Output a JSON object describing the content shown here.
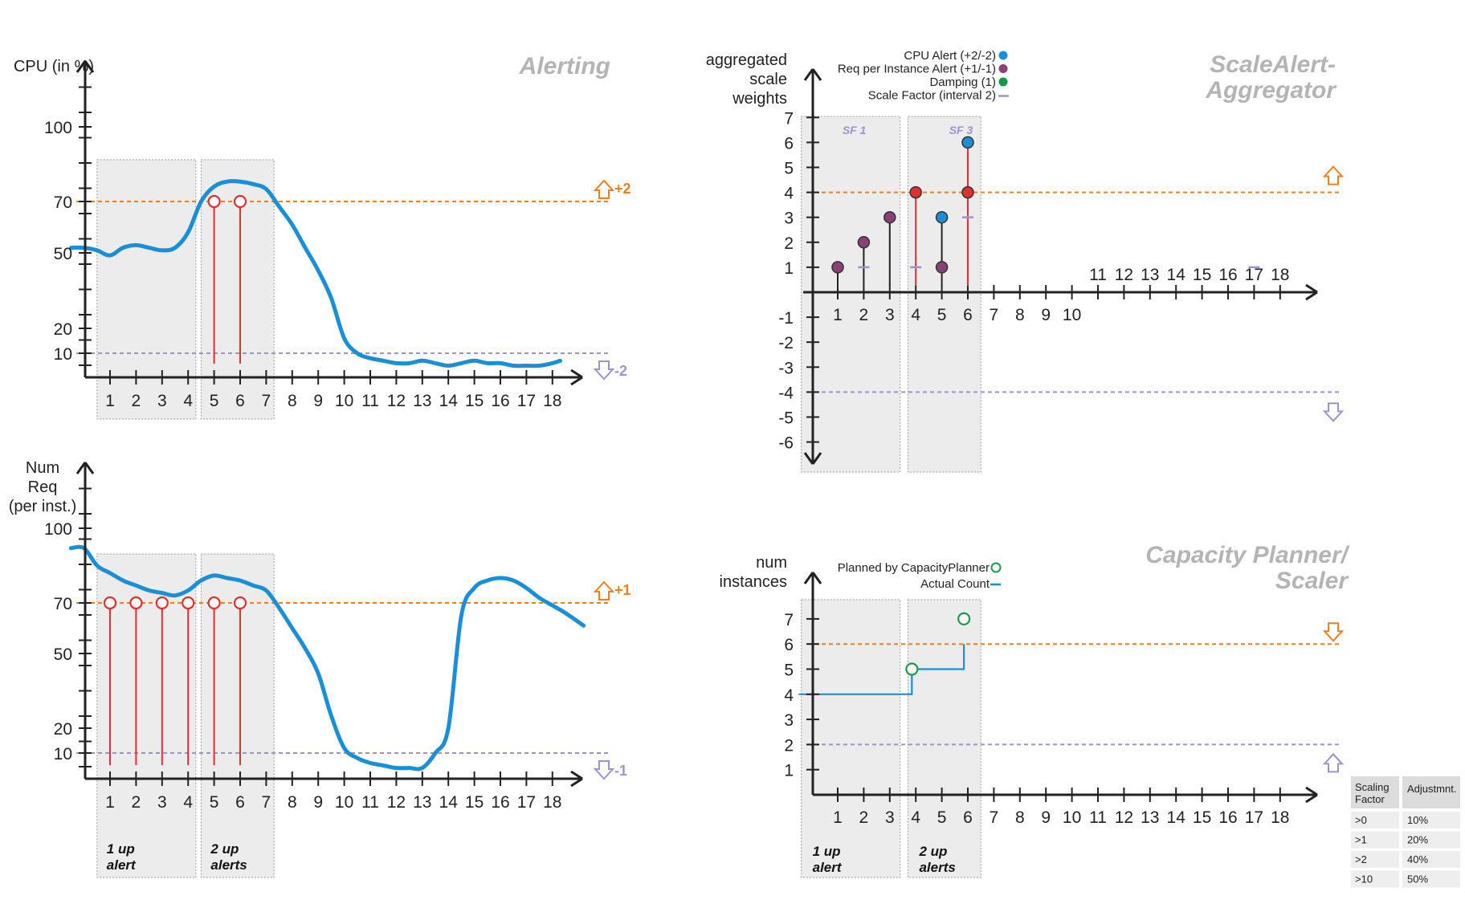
{
  "colors": {
    "curve": "#1a8fd6",
    "alert": "#e03030",
    "upper": "#f07f1e",
    "lower": "#9a94cc",
    "shade": "#ececec",
    "axis": "#222222",
    "cpu_dot": "#1a8fd6",
    "req_dot": "#8a3f78",
    "damping_dot": "#0e9a4a",
    "scale_factor": "#9a94cc",
    "planned": "#1e9a4a"
  },
  "legend_aggregator": [
    {
      "label": "CPU Alert (+2/-2)",
      "marker": "dot",
      "color": "#1a8fd6"
    },
    {
      "label": "Req per Instance Alert (+1/-1)",
      "marker": "dot",
      "color": "#8a3f78"
    },
    {
      "label": "Damping (1)",
      "marker": "dot",
      "color": "#0e9a4a"
    },
    {
      "label": "Scale Factor (interval 2)",
      "marker": "dash",
      "color": "#9a94cc"
    }
  ],
  "legend_planner": [
    {
      "label": "Planned by CapacityPlanner",
      "marker": "ring",
      "color": "#1e9a4a"
    },
    {
      "label": "Actual Count",
      "marker": "dash",
      "color": "#1a8fd6"
    }
  ],
  "scaling_table": {
    "headers": [
      "Scaling Factor",
      "Adjustmnt."
    ],
    "rows": [
      [
        ">0",
        "10%"
      ],
      [
        ">1",
        "20%"
      ],
      [
        ">2",
        "40%"
      ],
      [
        ">10",
        "50%"
      ]
    ]
  },
  "chart_data": [
    {
      "id": "cpu",
      "type": "line",
      "title": "Alerting",
      "ylabel": "CPU (in %)",
      "xticks": [
        "1",
        "2",
        "3",
        "4",
        "5",
        "6",
        "7",
        "8",
        "9",
        "10",
        "11",
        "12",
        "13",
        "14",
        "15",
        "16",
        "17",
        "18"
      ],
      "yticks": [
        "10",
        "20",
        "50",
        "70",
        "100"
      ],
      "x": [
        -0.5,
        0,
        0.5,
        1,
        1.5,
        2,
        2.5,
        3,
        3.5,
        4,
        4.5,
        5,
        5.5,
        6,
        6.5,
        7,
        7.5,
        8,
        8.5,
        9,
        9.5,
        10,
        10.5,
        11,
        11.5,
        12,
        12.5,
        13,
        13.5,
        14,
        14.5,
        15,
        15.5,
        16,
        16.5,
        17,
        17.5,
        18,
        18.3
      ],
      "values": [
        52,
        52,
        51,
        49,
        52,
        53,
        52,
        51,
        52,
        58,
        70,
        76,
        78,
        78,
        77,
        75,
        68,
        61,
        52,
        43,
        32,
        16,
        10,
        8,
        7,
        6,
        6,
        7,
        6,
        5,
        6,
        7,
        6,
        6,
        5,
        5,
        5,
        6,
        7
      ],
      "upper_threshold": {
        "value": 70,
        "label": "+2"
      },
      "lower_threshold": {
        "value": 10,
        "label": "-2"
      },
      "alerts": [
        {
          "x": 5,
          "y": 70
        },
        {
          "x": 6,
          "y": 70
        }
      ],
      "bands": [
        {
          "from": 0.5,
          "to": 4.3,
          "label": ""
        },
        {
          "from": 4.5,
          "to": 7.3,
          "label": ""
        }
      ]
    },
    {
      "id": "aggregator",
      "type": "scatter",
      "title": "ScaleAlert-\nAggregator",
      "ylabel": "aggregated\nscale\nweights",
      "xticks": [
        "1",
        "2",
        "3",
        "4",
        "5",
        "6",
        "7",
        "8",
        "9",
        "10",
        "11",
        "12",
        "13",
        "14",
        "15",
        "16",
        "17",
        "18"
      ],
      "yticks": [
        "-6",
        "-5",
        "-4",
        "-3",
        "-2",
        "-1",
        "1",
        "2",
        "3",
        "4",
        "5",
        "6",
        "7"
      ],
      "upper_threshold": {
        "value": 4
      },
      "lower_threshold": {
        "value": -4
      },
      "stems": [
        {
          "x": 1,
          "from": 0,
          "to": 1,
          "color": "#222222"
        },
        {
          "x": 2,
          "from": 0,
          "to": 2,
          "color": "#222222"
        },
        {
          "x": 3,
          "from": 0,
          "to": 3,
          "color": "#222222"
        },
        {
          "x": 4,
          "from": 0,
          "to": 4,
          "color": "#e03030"
        },
        {
          "x": 5,
          "from": 0,
          "to": 3,
          "color": "#222222"
        },
        {
          "x": 6,
          "from": 0,
          "to": 6,
          "color": "#e03030"
        }
      ],
      "points": [
        {
          "x": 1,
          "y": 1,
          "color": "#8a3f78"
        },
        {
          "x": 2,
          "y": 2,
          "color": "#8a3f78"
        },
        {
          "x": 3,
          "y": 3,
          "color": "#8a3f78"
        },
        {
          "x": 4,
          "y": 4,
          "color": "#e03030"
        },
        {
          "x": 5,
          "y": 1,
          "color": "#8a3f78"
        },
        {
          "x": 5,
          "y": 3,
          "color": "#1a8fd6"
        },
        {
          "x": 6,
          "y": 4,
          "color": "#e03030"
        },
        {
          "x": 6,
          "y": 6,
          "color": "#1a8fd6"
        }
      ],
      "scale_factor_marks": [
        {
          "x": 2,
          "y": 1
        },
        {
          "x": 4,
          "y": 1
        },
        {
          "x": 6,
          "y": 3
        },
        {
          "x": 17,
          "y": 1
        }
      ],
      "bands": [
        {
          "from": -0.4,
          "to": 3.4,
          "label": "SF 1"
        },
        {
          "from": 3.7,
          "to": 6.5,
          "label": "SF 3"
        }
      ]
    },
    {
      "id": "numreq",
      "type": "line",
      "title": "",
      "ylabel": "Num\nReq\n(per inst.)",
      "xticks": [
        "1",
        "2",
        "3",
        "4",
        "5",
        "6",
        "7",
        "8",
        "9",
        "10",
        "11",
        "12",
        "13",
        "14",
        "15",
        "16",
        "17",
        "18"
      ],
      "yticks": [
        "10",
        "20",
        "50",
        "70",
        "100"
      ],
      "x": [
        -0.5,
        0,
        0.5,
        1,
        1.5,
        2,
        2.5,
        3,
        3.5,
        4,
        4.5,
        5,
        5.5,
        6,
        6.5,
        7,
        7.5,
        8,
        8.5,
        9,
        9.5,
        10,
        10.5,
        11,
        11.5,
        12,
        12.5,
        13,
        13.5,
        14,
        14.5,
        15,
        15.5,
        16,
        16.5,
        17,
        17.5,
        18,
        18.5,
        19.2
      ],
      "values": [
        92,
        92,
        85,
        82,
        79,
        77,
        75,
        74,
        73,
        75,
        79,
        81,
        80,
        79,
        77,
        75,
        68,
        60,
        52,
        42,
        25,
        12,
        8,
        6,
        5,
        4,
        4,
        4,
        10,
        20,
        65,
        76,
        79,
        80,
        79,
        76,
        72,
        69,
        66,
        61
      ],
      "upper_threshold": {
        "value": 70,
        "label": "+1"
      },
      "lower_threshold": {
        "value": 10,
        "label": "-1"
      },
      "alerts": [
        {
          "x": 1,
          "y": 70
        },
        {
          "x": 2,
          "y": 70
        },
        {
          "x": 3,
          "y": 70
        },
        {
          "x": 4,
          "y": 70
        },
        {
          "x": 5,
          "y": 70
        },
        {
          "x": 6,
          "y": 70
        }
      ],
      "bands": [
        {
          "from": 0.5,
          "to": 4.3,
          "label": "1 up\nalert"
        },
        {
          "from": 4.5,
          "to": 7.3,
          "label": "2 up\nalerts"
        }
      ]
    },
    {
      "id": "planner",
      "type": "line",
      "title": "Capacity Planner/\nScaler",
      "ylabel": "num\ninstances",
      "xticks": [
        "1",
        "2",
        "3",
        "4",
        "5",
        "6",
        "7",
        "8",
        "9",
        "10",
        "11",
        "12",
        "13",
        "14",
        "15",
        "16",
        "17",
        "18"
      ],
      "yticks": [
        "1",
        "2",
        "3",
        "4",
        "5",
        "6",
        "7"
      ],
      "upper_threshold": {
        "value": 6
      },
      "lower_threshold": {
        "value": 2
      },
      "actual_count": [
        [
          -0.5,
          4
        ],
        [
          3.85,
          4
        ],
        [
          3.85,
          5
        ],
        [
          5.85,
          5
        ],
        [
          5.85,
          6
        ]
      ],
      "planned": [
        {
          "x": 3.85,
          "y": 5
        },
        {
          "x": 5.85,
          "y": 7
        }
      ],
      "bands": [
        {
          "from": -0.4,
          "to": 3.4,
          "label": "1 up\nalert"
        },
        {
          "from": 3.7,
          "to": 6.5,
          "label": "2 up\nalerts"
        }
      ]
    }
  ]
}
